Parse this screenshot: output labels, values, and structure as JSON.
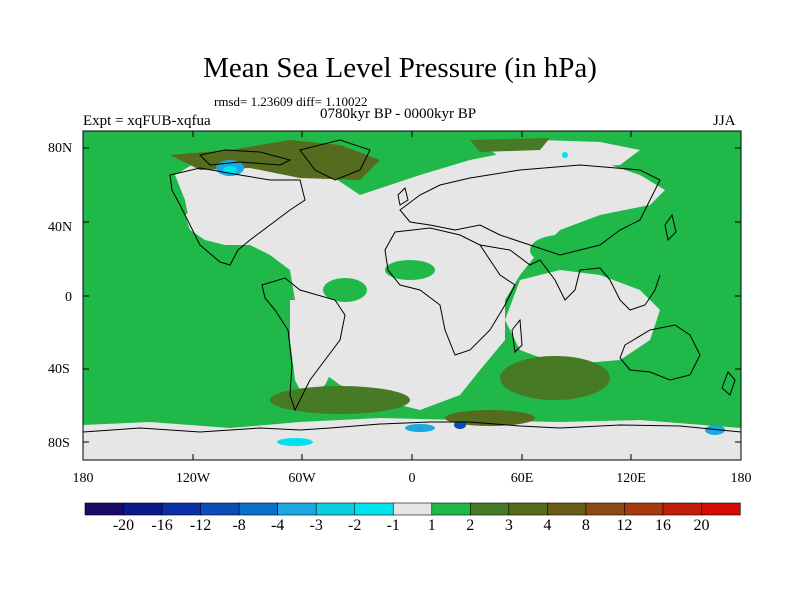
{
  "title": "Mean Sea Level Pressure (in hPa)",
  "stats": "rmsd= 1.23609 diff= 1.10022",
  "experiment": "Expt = xqFUB-xqfua",
  "period": "0780kyr BP - 0000kyr BP",
  "season": "JJA",
  "colors": {
    "land_neutral": "#e6e6e6",
    "green": "#21b84a",
    "olive_dark": "#556b1d",
    "cyan": "#00d4e4",
    "sky": "#1ba8e0"
  },
  "map": {
    "lat_ticks": [
      "80N",
      "40N",
      "0",
      "40S",
      "80S"
    ],
    "lat_values": [
      80,
      40,
      0,
      -40,
      -80
    ],
    "lon_ticks": [
      "180",
      "120W",
      "60W",
      "0",
      "60E",
      "120E",
      "180"
    ],
    "lon_values": [
      -180,
      -120,
      -60,
      0,
      60,
      120,
      180
    ]
  },
  "colorbar": {
    "colors": [
      "#1a0a66",
      "#0a1a8c",
      "#0a2da8",
      "#0a4cb8",
      "#0a70cc",
      "#1ba8e0",
      "#0ccde0",
      "#00e2ec",
      "#e6e6e6",
      "#21b84a",
      "#467a24",
      "#556b1d",
      "#6a5a1a",
      "#8a4a12",
      "#a83a0e",
      "#c01e0a",
      "#d40a06"
    ],
    "labels": [
      "-20",
      "-16",
      "-12",
      "-8",
      "-4",
      "-3",
      "-2",
      "-1",
      "1",
      "2",
      "3",
      "4",
      "8",
      "12",
      "16",
      "20"
    ]
  }
}
